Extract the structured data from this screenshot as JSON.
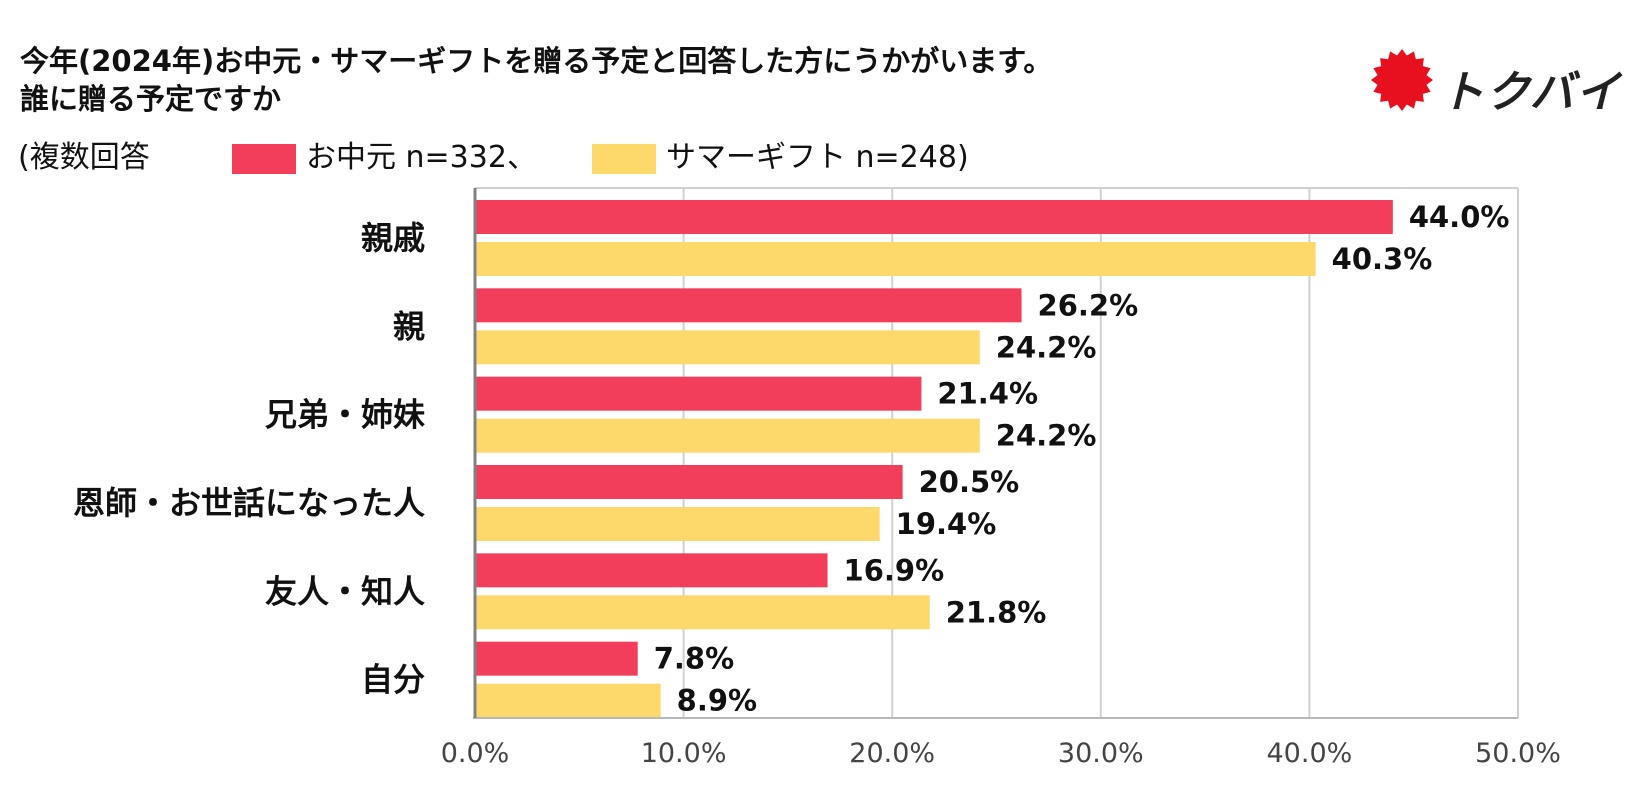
{
  "header": {
    "title_line1": "今年(2024年)お中元・サマーギフトを贈る予定と回答した方にうかがいます。",
    "title_line2": "誰に贈る予定ですか"
  },
  "legend": {
    "prefix": "(複数回答",
    "series1_label": "お中元 n=332、",
    "series2_label": "サマーギフト n=248)"
  },
  "logo": {
    "text": "トクバイ",
    "color": "#e8101e"
  },
  "chart_data": {
    "type": "bar",
    "orientation": "horizontal",
    "title": "今年(2024年)お中元・サマーギフトを贈る予定と回答した方にうかがいます。誰に贈る予定ですか",
    "categories": [
      "親戚",
      "親",
      "兄弟・姉妹",
      "恩師・お世話になった人",
      "友人・知人",
      "自分"
    ],
    "series": [
      {
        "name": "お中元 n=332",
        "color": "#f23e5a",
        "values": [
          44.0,
          26.2,
          21.4,
          20.5,
          16.9,
          7.8
        ],
        "labels": [
          "44.0%",
          "26.2%",
          "21.4%",
          "20.5%",
          "16.9%",
          "7.8%"
        ]
      },
      {
        "name": "サマーギフト n=248",
        "color": "#fdd86a",
        "values": [
          40.3,
          24.2,
          24.2,
          19.4,
          21.8,
          8.9
        ],
        "labels": [
          "40.3%",
          "24.2%",
          "24.2%",
          "19.4%",
          "21.8%",
          "8.9%"
        ]
      }
    ],
    "xlim": [
      0,
      50
    ],
    "xticks": [
      0,
      10,
      20,
      30,
      40,
      50
    ],
    "xtick_labels": [
      "0.0%",
      "10.0%",
      "20.0%",
      "30.0%",
      "40.0%",
      "50.0%"
    ],
    "grid": true,
    "xlabel": "",
    "ylabel": ""
  }
}
